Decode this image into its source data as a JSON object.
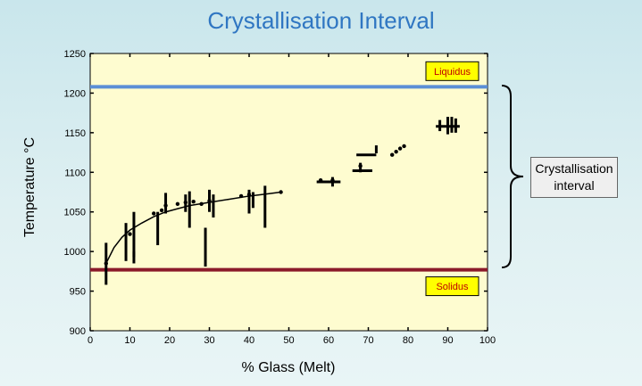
{
  "title": "Crystallisation Interval",
  "callout": {
    "line1": "Crystallisation",
    "line2": "interval"
  },
  "colors": {
    "liquidus": "#5b8fd6",
    "solidus": "#8b1a2a",
    "plot_bg": "#fefcd0",
    "tag_bg": "#ffff00",
    "tag_text": "#c00000"
  },
  "chart_data": {
    "type": "scatter",
    "title": "",
    "xlabel": "% Glass (Melt)",
    "ylabel": "Temperature °C",
    "xlim": [
      0,
      100
    ],
    "ylim": [
      900,
      1250
    ],
    "xticks": [
      0,
      10,
      20,
      30,
      40,
      50,
      60,
      70,
      80,
      90,
      100
    ],
    "yticks": [
      900,
      950,
      1000,
      1050,
      1100,
      1150,
      1200,
      1250
    ],
    "grid": false,
    "reference_lines": [
      {
        "label": "Liquidus",
        "y": 1208
      },
      {
        "label": "Solidus",
        "y": 977
      }
    ],
    "points": [
      {
        "x": 4,
        "y": 985
      },
      {
        "x": 10,
        "y": 1022
      },
      {
        "x": 16,
        "y": 1048
      },
      {
        "x": 18,
        "y": 1052
      },
      {
        "x": 19,
        "y": 1058
      },
      {
        "x": 22,
        "y": 1060
      },
      {
        "x": 24,
        "y": 1062
      },
      {
        "x": 26,
        "y": 1063
      },
      {
        "x": 28,
        "y": 1060
      },
      {
        "x": 30,
        "y": 1064
      },
      {
        "x": 38,
        "y": 1070
      },
      {
        "x": 40,
        "y": 1072
      },
      {
        "x": 48,
        "y": 1075
      },
      {
        "x": 58,
        "y": 1090
      },
      {
        "x": 61,
        "y": 1090
      },
      {
        "x": 68,
        "y": 1108
      },
      {
        "x": 76,
        "y": 1122
      },
      {
        "x": 77,
        "y": 1126
      },
      {
        "x": 78,
        "y": 1130
      },
      {
        "x": 79,
        "y": 1133
      }
    ],
    "vertical_ranges": [
      {
        "x": 4,
        "ymin": 958,
        "ymax": 1011
      },
      {
        "x": 9,
        "ymin": 988,
        "ymax": 1036
      },
      {
        "x": 11,
        "ymin": 993,
        "ymax": 1050
      },
      {
        "x": 11,
        "ymin": 985,
        "ymax": 1000
      },
      {
        "x": 17,
        "ymin": 1008,
        "ymax": 1050
      },
      {
        "x": 19,
        "ymin": 1048,
        "ymax": 1074
      },
      {
        "x": 24,
        "ymin": 1050,
        "ymax": 1072
      },
      {
        "x": 25,
        "ymin": 1030,
        "ymax": 1076
      },
      {
        "x": 29,
        "ymin": 981,
        "ymax": 1030
      },
      {
        "x": 30,
        "ymin": 1050,
        "ymax": 1078
      },
      {
        "x": 31,
        "ymin": 1043,
        "ymax": 1072
      },
      {
        "x": 40,
        "ymin": 1048,
        "ymax": 1078
      },
      {
        "x": 41,
        "ymin": 1055,
        "ymax": 1075
      },
      {
        "x": 44,
        "ymin": 1030,
        "ymax": 1083
      },
      {
        "x": 61,
        "ymin": 1082,
        "ymax": 1094
      },
      {
        "x": 68,
        "ymin": 1100,
        "ymax": 1112
      },
      {
        "x": 72,
        "ymin": 1124,
        "ymax": 1134
      },
      {
        "x": 88,
        "ymin": 1152,
        "ymax": 1166
      },
      {
        "x": 90,
        "ymin": 1148,
        "ymax": 1170
      },
      {
        "x": 91,
        "ymin": 1150,
        "ymax": 1170
      },
      {
        "x": 92,
        "ymin": 1150,
        "ymax": 1168
      }
    ],
    "horizontal_ranges": [
      {
        "y": 1088,
        "xmin": 57,
        "xmax": 63
      },
      {
        "y": 1122,
        "xmin": 67,
        "xmax": 72
      },
      {
        "y": 1102,
        "xmin": 66,
        "xmax": 71
      },
      {
        "y": 1158,
        "xmin": 87,
        "xmax": 93
      }
    ],
    "trend_curve": [
      [
        4,
        985
      ],
      [
        6,
        1005
      ],
      [
        8,
        1018
      ],
      [
        10,
        1027
      ],
      [
        13,
        1036
      ],
      [
        16,
        1044
      ],
      [
        19,
        1050
      ],
      [
        22,
        1054
      ],
      [
        25,
        1058
      ],
      [
        30,
        1062
      ],
      [
        35,
        1066
      ],
      [
        40,
        1070
      ],
      [
        45,
        1073
      ],
      [
        48,
        1075
      ]
    ]
  }
}
